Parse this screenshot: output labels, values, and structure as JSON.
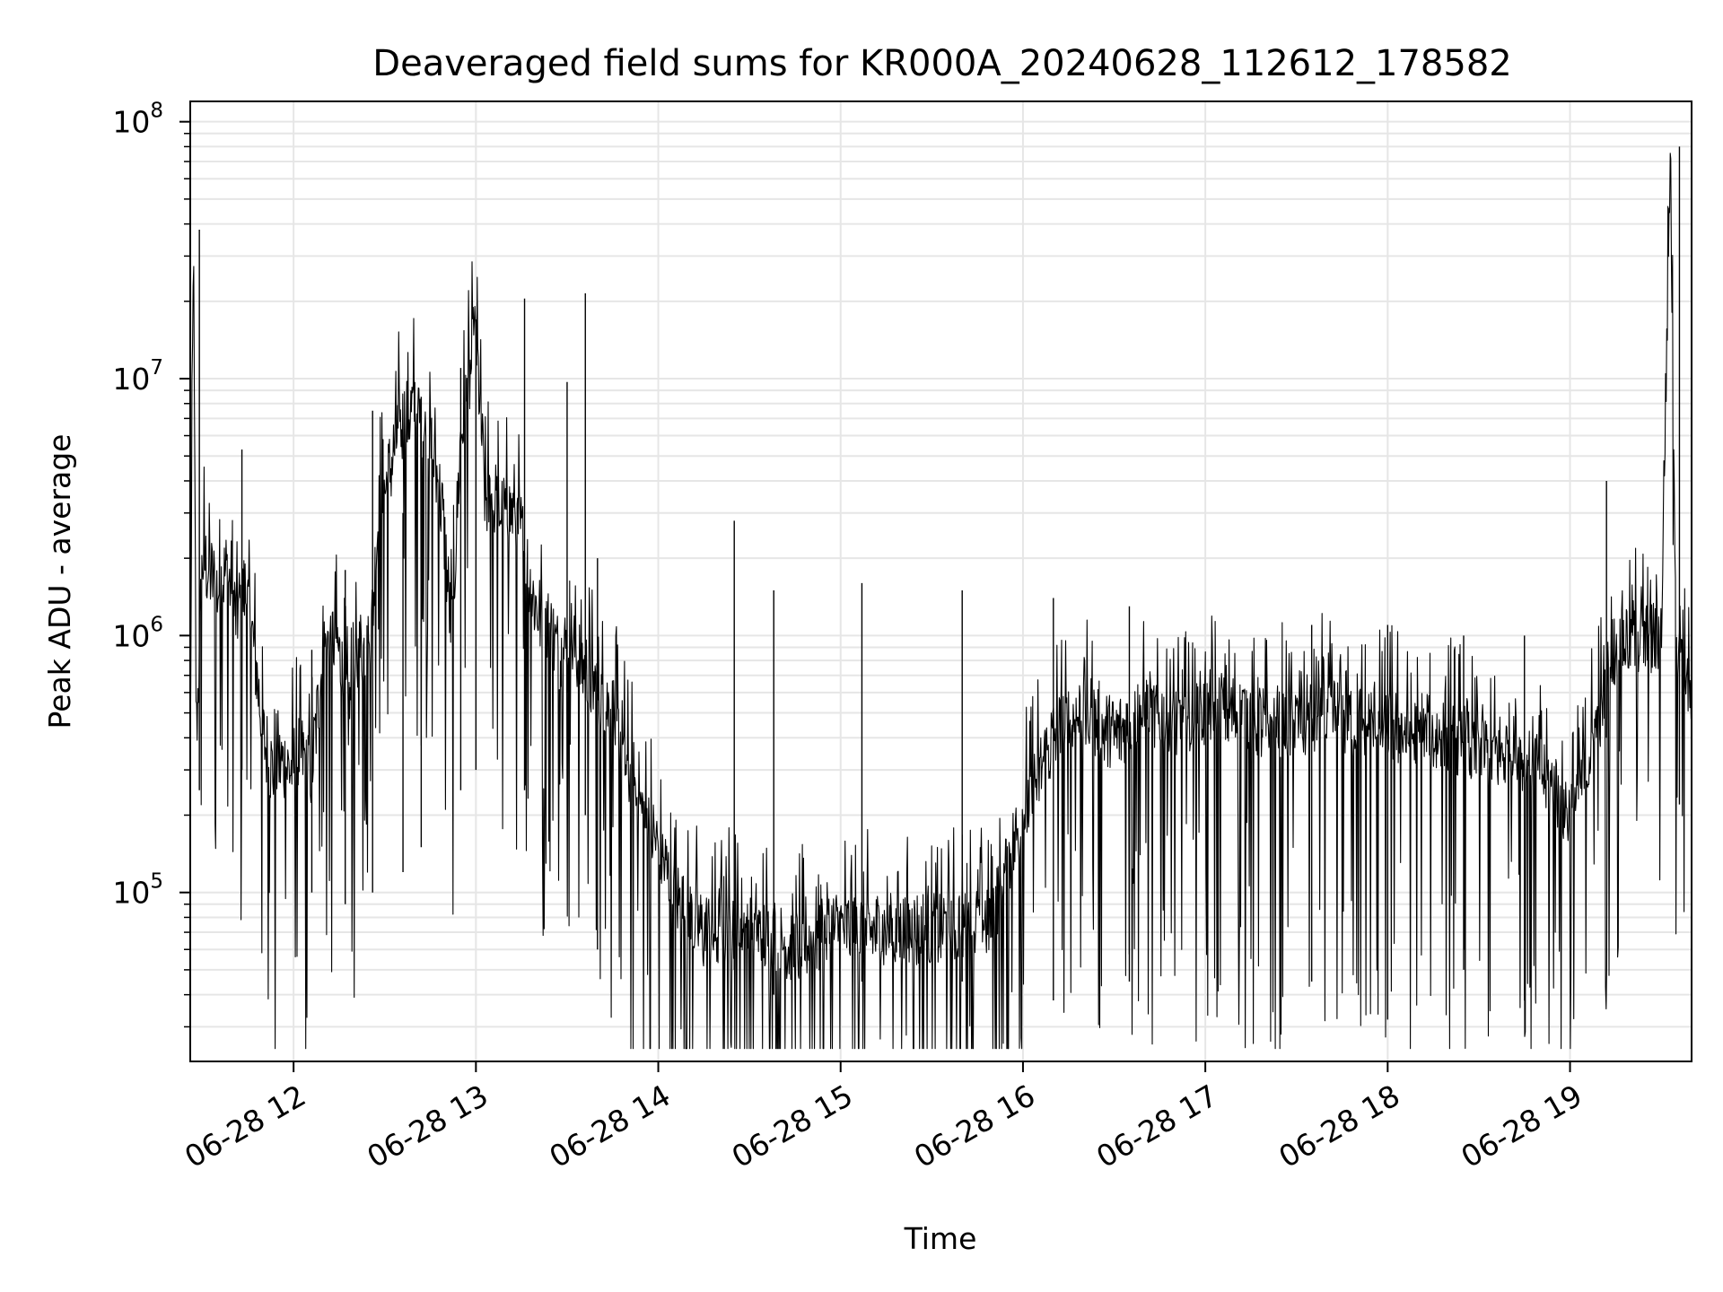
{
  "chart_data": {
    "type": "line",
    "title": "Deaveraged field sums for KR000A_20240628_112612_178582",
    "xlabel": "Time",
    "ylabel": "Peak ADU - average",
    "yscale": "log",
    "ylim": [
      22000,
      120000000
    ],
    "xlim": [
      "2024-06-28 11:26",
      "2024-06-28 19:40"
    ],
    "grid": true,
    "x_ticks": [
      "06-28 12",
      "06-28 13",
      "06-28 14",
      "06-28 15",
      "06-28 16",
      "06-28 17",
      "06-28 18",
      "06-28 19"
    ],
    "y_ticks": [
      {
        "base": "10",
        "exp": "5",
        "value": 100000
      },
      {
        "base": "10",
        "exp": "6",
        "value": 1000000
      },
      {
        "base": "10",
        "exp": "7",
        "value": 10000000
      },
      {
        "base": "10",
        "exp": "8",
        "value": 100000000
      }
    ],
    "line_color": "#000000",
    "grid_color": "#e6e6e6",
    "series": [
      {
        "x": [
          "2024-06-28 11:26",
          "2024-06-28 11:27",
          "2024-06-28 11:28",
          "2024-06-28 11:30",
          "2024-06-28 11:32",
          "2024-06-28 11:35",
          "2024-06-28 11:38",
          "2024-06-28 11:41",
          "2024-06-28 11:44",
          "2024-06-28 11:47",
          "2024-06-28 11:50",
          "2024-06-28 11:53",
          "2024-06-28 11:56",
          "2024-06-28 11:59",
          "2024-06-28 12:02",
          "2024-06-28 12:06",
          "2024-06-28 12:10",
          "2024-06-28 12:14",
          "2024-06-28 12:18",
          "2024-06-28 12:22",
          "2024-06-28 12:25",
          "2024-06-28 12:28",
          "2024-06-28 12:31",
          "2024-06-28 12:34",
          "2024-06-28 12:37",
          "2024-06-28 12:40",
          "2024-06-28 12:43",
          "2024-06-28 12:46",
          "2024-06-28 12:49",
          "2024-06-28 12:52",
          "2024-06-28 12:55",
          "2024-06-28 12:58",
          "2024-06-28 13:00",
          "2024-06-28 13:03",
          "2024-06-28 13:06",
          "2024-06-28 13:09",
          "2024-06-28 13:12",
          "2024-06-28 13:15",
          "2024-06-28 13:18",
          "2024-06-28 13:21",
          "2024-06-28 13:25",
          "2024-06-28 13:28",
          "2024-06-28 13:31",
          "2024-06-28 13:34",
          "2024-06-28 13:37",
          "2024-06-28 13:40",
          "2024-06-28 13:45",
          "2024-06-28 13:50",
          "2024-06-28 13:55",
          "2024-06-28 14:00",
          "2024-06-28 14:05",
          "2024-06-28 14:10",
          "2024-06-28 14:15",
          "2024-06-28 14:20",
          "2024-06-28 14:25",
          "2024-06-28 14:30",
          "2024-06-28 14:35",
          "2024-06-28 14:40",
          "2024-06-28 14:45",
          "2024-06-28 14:50",
          "2024-06-28 14:55",
          "2024-06-28 15:00",
          "2024-06-28 15:10",
          "2024-06-28 15:20",
          "2024-06-28 15:30",
          "2024-06-28 15:40",
          "2024-06-28 15:50",
          "2024-06-28 16:00",
          "2024-06-28 16:10",
          "2024-06-28 16:20",
          "2024-06-28 16:30",
          "2024-06-28 16:40",
          "2024-06-28 16:50",
          "2024-06-28 17:00",
          "2024-06-28 17:10",
          "2024-06-28 17:20",
          "2024-06-28 17:30",
          "2024-06-28 17:40",
          "2024-06-28 17:50",
          "2024-06-28 18:00",
          "2024-06-28 18:10",
          "2024-06-28 18:20",
          "2024-06-28 18:30",
          "2024-06-28 18:40",
          "2024-06-28 18:50",
          "2024-06-28 19:00",
          "2024-06-28 19:05",
          "2024-06-28 19:10",
          "2024-06-28 19:15",
          "2024-06-28 19:20",
          "2024-06-28 19:25",
          "2024-06-28 19:30",
          "2024-06-28 19:33",
          "2024-06-28 19:35",
          "2024-06-28 19:37",
          "2024-06-28 19:40"
        ],
        "y": [
          300000,
          38000000,
          400000,
          2000000,
          1800000,
          1500000,
          1800000,
          1200000,
          1500000,
          900000,
          400000,
          300000,
          320000,
          300000,
          350000,
          300000,
          900000,
          1000000,
          500000,
          900000,
          800000,
          3000000,
          4000000,
          6000000,
          7000000,
          8000000,
          6000000,
          5000000,
          3000000,
          1000000,
          6000000,
          10000000,
          15000000,
          3500000,
          3200000,
          3000000,
          3000000,
          2500000,
          1500000,
          1200000,
          1000000,
          800000,
          1000000,
          800000,
          700000,
          600000,
          500000,
          300000,
          200000,
          150000,
          100000,
          80000,
          70000,
          70000,
          75000,
          70000,
          68000,
          65000,
          60000,
          65000,
          70000,
          72000,
          70000,
          70000,
          72000,
          75000,
          80000,
          200000,
          400000,
          500000,
          400000,
          500000,
          450000,
          500000,
          500000,
          450000,
          450000,
          500000,
          450000,
          450000,
          400000,
          400000,
          350000,
          350000,
          300000,
          200000,
          300000,
          500000,
          900000,
          1000000,
          950000,
          1000000,
          80000000,
          900000,
          1000000,
          500000
        ],
        "spikes": [
          {
            "x": "2024-06-28 11:29",
            "low": 250000,
            "high": 38000000
          },
          {
            "x": "2024-06-28 11:43",
            "low": 300000,
            "high": 5300000
          },
          {
            "x": "2024-06-28 12:06",
            "low": 100000,
            "high": 880000
          },
          {
            "x": "2024-06-28 12:17",
            "low": 90000,
            "high": 1800000
          },
          {
            "x": "2024-06-28 12:26",
            "low": 100000,
            "high": 7500000
          },
          {
            "x": "2024-06-28 12:36",
            "low": 120000,
            "high": 3000000
          },
          {
            "x": "2024-06-28 12:42",
            "low": 150000,
            "high": 8500000
          },
          {
            "x": "2024-06-28 12:55",
            "low": 250000,
            "high": 11000000
          },
          {
            "x": "2024-06-28 13:00",
            "low": 300000,
            "high": 17000000
          },
          {
            "x": "2024-06-28 13:16",
            "low": 250000,
            "high": 20500000
          },
          {
            "x": "2024-06-28 13:30",
            "low": 600000,
            "high": 9700000
          },
          {
            "x": "2024-06-28 13:36",
            "low": 200000,
            "high": 21500000
          },
          {
            "x": "2024-06-28 13:40",
            "low": 60000,
            "high": 2000000
          },
          {
            "x": "2024-06-28 14:25",
            "low": 50000,
            "high": 2800000
          },
          {
            "x": "2024-06-28 14:38",
            "low": 40000,
            "high": 1500000
          },
          {
            "x": "2024-06-28 15:07",
            "low": 45000,
            "high": 1600000
          },
          {
            "x": "2024-06-28 15:40",
            "low": 45000,
            "high": 1500000
          },
          {
            "x": "2024-06-28 16:10",
            "low": 38000,
            "high": 1400000
          },
          {
            "x": "2024-06-28 16:35",
            "low": 45000,
            "high": 1300000
          },
          {
            "x": "2024-06-28 17:35",
            "low": 45000,
            "high": 1100000
          },
          {
            "x": "2024-06-28 18:00",
            "low": 32000,
            "high": 1100000
          },
          {
            "x": "2024-06-28 18:25",
            "low": 50000,
            "high": 1000000
          },
          {
            "x": "2024-06-28 18:45",
            "low": 38000,
            "high": 1000000
          },
          {
            "x": "2024-06-28 19:12",
            "low": 400000,
            "high": 4000000
          },
          {
            "x": "2024-06-28 19:36",
            "low": 220000,
            "high": 80000000
          }
        ]
      }
    ]
  }
}
